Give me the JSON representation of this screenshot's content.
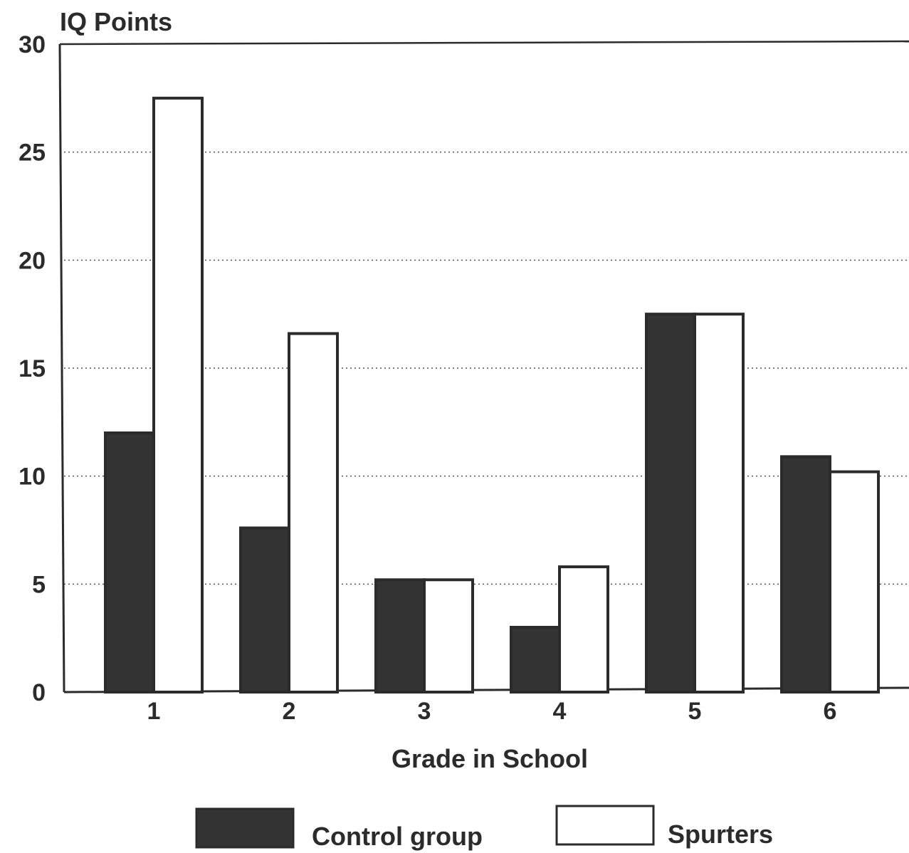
{
  "chart_data": {
    "type": "bar",
    "ylabel": "IQ Points",
    "xlabel": "Grade in School",
    "categories": [
      "1",
      "2",
      "3",
      "4",
      "5",
      "6"
    ],
    "series": [
      {
        "name": "Control group",
        "values": [
          12,
          7.6,
          5.2,
          3.0,
          17.5,
          10.9
        ],
        "color": "#333333"
      },
      {
        "name": "Spurters",
        "values": [
          27.5,
          16.6,
          5.2,
          5.8,
          17.5,
          10.2
        ],
        "color": "#ffffff"
      }
    ],
    "ylim": [
      0,
      30
    ],
    "yticks": [
      "0",
      "5",
      "10",
      "15",
      "20",
      "25",
      "30"
    ],
    "grid": "dotted horizontal",
    "legend_position": "bottom"
  }
}
